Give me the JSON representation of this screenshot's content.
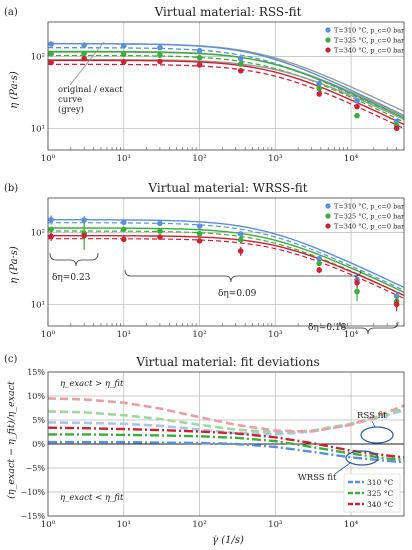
{
  "colors": {
    "blue": "#5b8fd8",
    "green": "#3aae3a",
    "red": "#cc2233",
    "grey": "#9a9a9a",
    "blue_light": "#a9c4ee",
    "green_light": "#9ed89e",
    "red_light": "#e8a0a8",
    "grid": "#b8b8b8"
  },
  "chart_data": [
    {
      "panel": "(a)",
      "type": "line",
      "title": "Virtual material: RSS-fit",
      "ylabel": "η (Pa·s)",
      "xlabel": "",
      "xscale": "log",
      "yscale": "log",
      "xlim": [
        1,
        50000
      ],
      "ylim": [
        5,
        300
      ],
      "x_ticks": [
        "10⁰",
        "10¹",
        "10²",
        "10³",
        "10⁴"
      ],
      "y_ticks": [
        "10¹",
        "10²"
      ],
      "legend": {
        "placement": "top-right",
        "entries": [
          {
            "label": "T=310 °C,  p_c=0 bar",
            "color": "blue"
          },
          {
            "label": "T=325 °C,  p_c=0 bar",
            "color": "green"
          },
          {
            "label": "T=340 °C,  p_c=0 bar",
            "color": "red"
          }
        ]
      },
      "annotation": {
        "text": [
          "original / exact",
          "curve",
          "(grey)"
        ]
      },
      "series": [
        {
          "name": "T=310 °C",
          "color": "blue",
          "eta0": 150,
          "lambda": 0.0015,
          "n": 0.5,
          "eta0_fit": 150,
          "lambda_fit": 0.00165,
          "n_fit": 0.48,
          "points": [
            [
              1.1,
              148
            ],
            [
              3,
              143
            ],
            [
              10,
              140
            ],
            [
              30,
              132
            ],
            [
              100,
              120
            ],
            [
              350,
              93
            ],
            [
              3800,
              42
            ],
            [
              12000,
              24
            ],
            [
              40000,
              12.5
            ]
          ]
        },
        {
          "name": "T=325 °C",
          "color": "green",
          "eta0": 115,
          "lambda": 0.0012,
          "n": 0.5,
          "eta0_fit": 117,
          "lambda_fit": 0.00128,
          "n_fit": 0.49,
          "points": [
            [
              1.1,
              108
            ],
            [
              3,
              110
            ],
            [
              10,
              107
            ],
            [
              30,
              104
            ],
            [
              100,
              96
            ],
            [
              350,
              78
            ],
            [
              3800,
              36
            ],
            [
              12000,
              15
            ],
            [
              40000,
              11
            ]
          ]
        },
        {
          "name": "T=340 °C",
          "color": "red",
          "eta0": 90,
          "lambda": 0.0009,
          "n": 0.5,
          "eta0_fit": 88,
          "lambda_fit": 0.0011,
          "n_fit": 0.49,
          "points": [
            [
              1.1,
              82
            ],
            [
              3,
              93
            ],
            [
              10,
              84
            ],
            [
              30,
              85
            ],
            [
              100,
              76
            ],
            [
              350,
              63
            ],
            [
              3800,
              30
            ],
            [
              12000,
              20
            ],
            [
              40000,
              10
            ]
          ]
        }
      ]
    },
    {
      "panel": "(b)",
      "type": "line",
      "title": "Virtual material: WRSS-fit",
      "ylabel": "η (Pa·s)",
      "xlabel": "",
      "xscale": "log",
      "yscale": "log",
      "xlim": [
        1,
        50000
      ],
      "ylim": [
        5,
        300
      ],
      "x_ticks": [
        "10⁰",
        "10¹",
        "10²",
        "10³",
        "10⁴"
      ],
      "y_ticks": [
        "10¹",
        "10²"
      ],
      "legend": {
        "placement": "top-right",
        "entries": [
          {
            "label": "T=310 °C,  p_c=0 bar",
            "color": "blue"
          },
          {
            "label": "T=325 °C,  p_c=0 bar",
            "color": "green"
          },
          {
            "label": "T=340 °C,  p_c=0 bar",
            "color": "red"
          }
        ]
      },
      "annotations": [
        "δη=0.23",
        "δη=0.09",
        "δη=0.18"
      ],
      "series": [
        {
          "name": "T=310 °C",
          "color": "blue",
          "eta0": 150,
          "lambda": 0.0015,
          "n": 0.5,
          "points": [
            [
              1.1,
              150,
              22
            ],
            [
              3,
              148,
              20
            ],
            [
              10,
              138,
              6
            ],
            [
              30,
              133,
              5
            ],
            [
              100,
              122,
              4
            ],
            [
              350,
              95,
              4
            ],
            [
              3800,
              43,
              3
            ],
            [
              12000,
              22,
              4
            ],
            [
              40000,
              13,
              2
            ]
          ]
        },
        {
          "name": "T=325 °C",
          "color": "green",
          "eta0": 115,
          "lambda": 0.0012,
          "n": 0.5,
          "points": [
            [
              1.1,
              110,
              10
            ],
            [
              3,
              97,
              40
            ],
            [
              10,
              110,
              5
            ],
            [
              30,
              104,
              5
            ],
            [
              100,
              96,
              4
            ],
            [
              350,
              79,
              4
            ],
            [
              3800,
              37,
              3
            ],
            [
              12000,
              15,
              4
            ],
            [
              40000,
              11,
              2
            ]
          ]
        },
        {
          "name": "T=340 °C",
          "color": "red",
          "eta0": 90,
          "lambda": 0.0009,
          "n": 0.5,
          "points": [
            [
              1.1,
              88,
              12
            ],
            [
              3,
              90,
              8
            ],
            [
              10,
              80,
              5
            ],
            [
              30,
              86,
              4
            ],
            [
              100,
              76,
              4
            ],
            [
              350,
              55,
              8
            ],
            [
              3800,
              30,
              3
            ],
            [
              12000,
              20,
              3
            ],
            [
              40000,
              10,
              2
            ]
          ]
        }
      ]
    },
    {
      "panel": "(c)",
      "type": "line",
      "title": "Virtual material: fit deviations",
      "ylabel": "(η_exact − η_fit)/η_exact",
      "xlabel": "γ̇ (1/s)",
      "xscale": "log",
      "xlim": [
        1,
        50000
      ],
      "ylim": [
        -15,
        15
      ],
      "x_ticks": [
        "10⁰",
        "10¹",
        "10²",
        "10³",
        "10⁴"
      ],
      "y_ticks": [
        "15%",
        "10%",
        "5%",
        "0%",
        "−5%",
        "−10%",
        "−15%"
      ],
      "legend": {
        "placement": "bottom-right",
        "entries": [
          {
            "label": "310 °C",
            "color": "blue"
          },
          {
            "label": "325 °C",
            "color": "green"
          },
          {
            "label": "340 °C",
            "color": "red"
          }
        ]
      },
      "annotations": [
        "η_exact > η_fit",
        "η_exact < η_fit",
        "RSS fit",
        "WRSS fit"
      ],
      "series": [
        {
          "name": "310 °C",
          "color": "blue",
          "style": "dashed-light",
          "fit": "RSS",
          "x": [
            1,
            3,
            10,
            30,
            100,
            300,
            1000,
            3000,
            10000,
            30000,
            50000
          ],
          "y": [
            4.5,
            4.4,
            4.2,
            3.8,
            3.0,
            2.3,
            2.0,
            2.6,
            4.0,
            6.0,
            7.0
          ]
        },
        {
          "name": "325 °C",
          "color": "green",
          "style": "dashed-light",
          "fit": "RSS",
          "x": [
            1,
            3,
            10,
            30,
            100,
            300,
            1000,
            3000,
            10000,
            30000,
            50000
          ],
          "y": [
            6.8,
            6.6,
            6.0,
            5.2,
            4.0,
            3.0,
            2.4,
            2.8,
            4.2,
            6.2,
            7.4
          ]
        },
        {
          "name": "340 °C",
          "color": "red",
          "style": "dashed-light",
          "fit": "RSS",
          "x": [
            1,
            3,
            10,
            30,
            100,
            300,
            1000,
            3000,
            10000,
            30000,
            50000
          ],
          "y": [
            9.5,
            9.3,
            8.6,
            7.4,
            5.6,
            4.0,
            2.8,
            2.6,
            4.0,
            6.6,
            8.0
          ]
        },
        {
          "name": "310 °C",
          "color": "blue",
          "style": "dashdot",
          "fit": "WRSS",
          "x": [
            1,
            3,
            10,
            30,
            100,
            300,
            1000,
            3000,
            10000,
            30000,
            50000
          ],
          "y": [
            0.4,
            0.4,
            0.4,
            0.3,
            0.2,
            0.0,
            -0.6,
            -1.6,
            -2.8,
            -3.5,
            -3.8
          ]
        },
        {
          "name": "325 °C",
          "color": "green",
          "style": "dashdot",
          "fit": "WRSS",
          "x": [
            1,
            3,
            10,
            30,
            100,
            300,
            1000,
            3000,
            10000,
            30000,
            50000
          ],
          "y": [
            2.0,
            2.0,
            1.9,
            1.8,
            1.6,
            1.3,
            0.6,
            -0.6,
            -2.0,
            -3.0,
            -3.3
          ]
        },
        {
          "name": "340 °C",
          "color": "red",
          "style": "dashdot",
          "fit": "WRSS",
          "x": [
            1,
            3,
            10,
            30,
            100,
            300,
            1000,
            3000,
            10000,
            30000,
            50000
          ],
          "y": [
            3.4,
            3.3,
            3.1,
            2.9,
            2.6,
            2.2,
            1.4,
            0.2,
            -1.4,
            -2.4,
            -2.8
          ]
        }
      ]
    }
  ]
}
